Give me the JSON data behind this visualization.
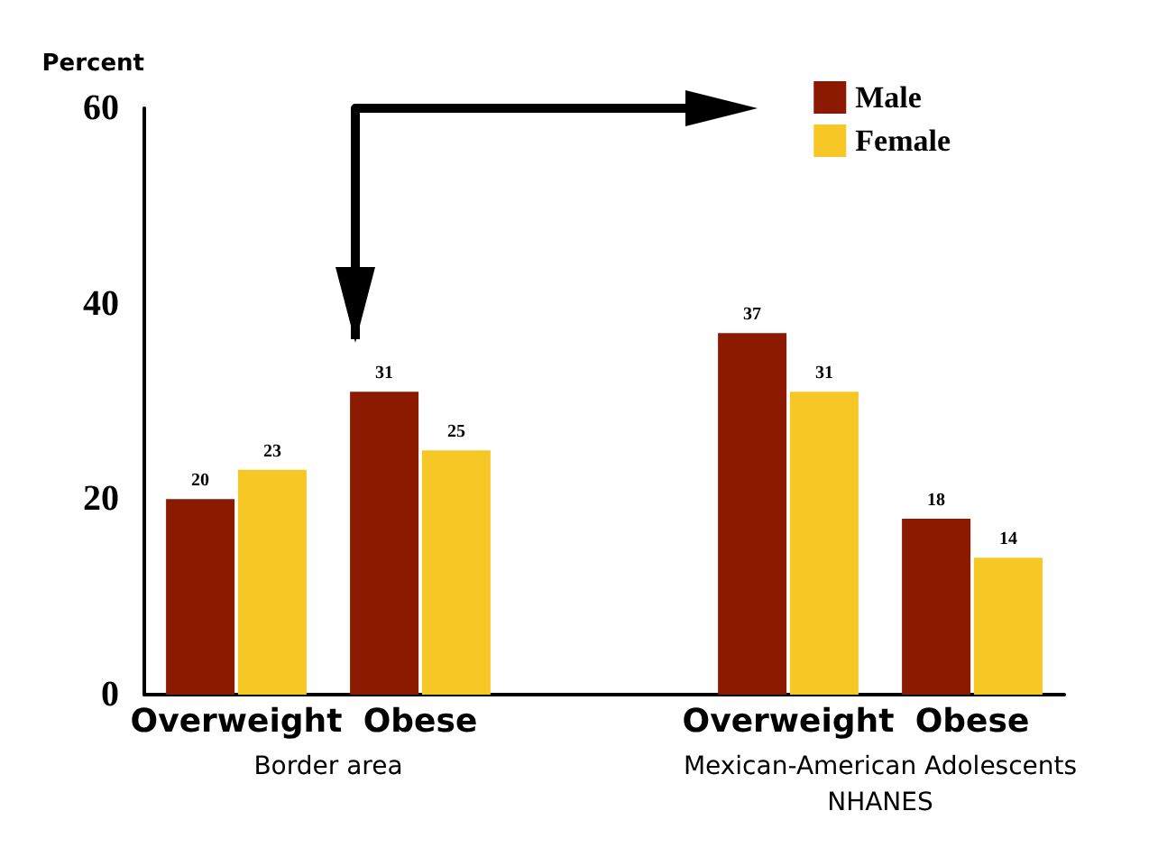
{
  "chart_data": {
    "type": "bar",
    "ylabel": "Percent",
    "categories": [
      "Overweight",
      "Obese",
      null,
      "Overweight",
      "Obese"
    ],
    "series": [
      {
        "name": "Male",
        "color": "#8b1a00",
        "values": [
          20,
          31,
          null,
          37,
          18
        ]
      },
      {
        "name": "Female",
        "color": "#f7c825",
        "values": [
          23,
          25,
          null,
          31,
          14
        ]
      }
    ],
    "ylim": [
      0,
      60
    ],
    "yticks": [
      0,
      20,
      40,
      60
    ],
    "grid": false,
    "legend": "top right",
    "data_labels": true,
    "annotations": [
      "Border area",
      "Mexican-American Adolescents\nNHANES"
    ]
  }
}
